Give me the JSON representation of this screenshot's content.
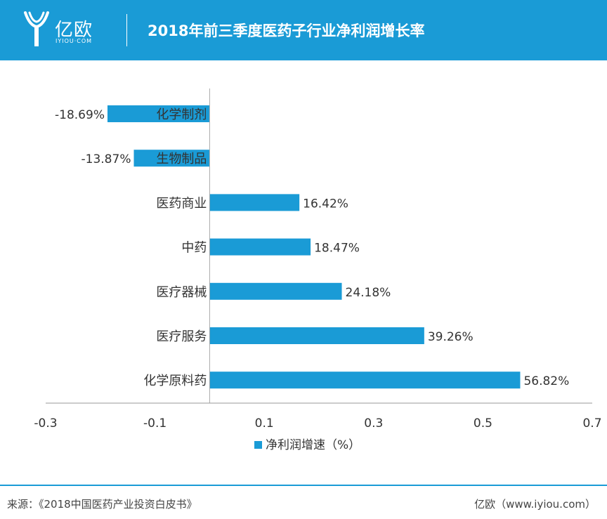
{
  "header": {
    "brand_name": "亿欧",
    "brand_domain": "IYIOU·COM",
    "title": "2018年前三季度医药子行业净利润增长率"
  },
  "chart_data": {
    "type": "bar",
    "orientation": "horizontal",
    "categories": [
      "化学制剂",
      "生物制品",
      "医药商业",
      "中药",
      "医疗器械",
      "医疗服务",
      "化学原料药"
    ],
    "series": [
      {
        "name": "净利润增速（%）",
        "values": [
          -0.1869,
          -0.1387,
          0.1642,
          0.1847,
          0.2418,
          0.3926,
          0.5682
        ],
        "value_labels": [
          "-18.69%",
          "-13.87%",
          "16.42%",
          "18.47%",
          "24.18%",
          "39.26%",
          "56.82%"
        ],
        "color": "#1a9bd6"
      }
    ],
    "x_ticks": [
      "-0.3",
      "-0.1",
      "0.1",
      "0.3",
      "0.5",
      "0.7"
    ],
    "xlim": [
      -0.3,
      0.7
    ],
    "grid": false,
    "legend_placement": "bottom-center"
  },
  "footer": {
    "source": "来源：《2018中国医药产业投资白皮书》",
    "brand": "亿欧（www.iyiou.com）"
  },
  "colors": {
    "accent": "#1a9bd6",
    "text": "#333333"
  }
}
